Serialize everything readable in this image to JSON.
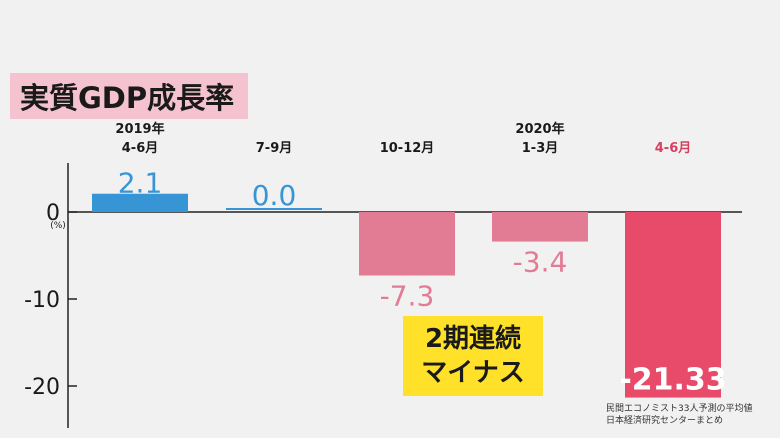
{
  "title": "実質GDP成長率",
  "callout": {
    "line1": "2期連続",
    "line2": "マイナス"
  },
  "source": {
    "line1": "民間エコノミスト33人予測の平均値",
    "line2": "日本経済研究センターまとめ"
  },
  "colors": {
    "blue": "#3795d6",
    "pink": "#e27c95",
    "red": "#e84a69",
    "red_label": "#d6405f",
    "title_bg": "#f4c3cf",
    "callout_bg": "#ffe12a"
  },
  "chart_data": {
    "type": "bar",
    "title": "実質GDP成長率",
    "ylabel": "(%)",
    "ylim": [
      -25,
      5
    ],
    "y_ticks": [
      "0",
      "-10",
      "-20"
    ],
    "y_tick_values": [
      0,
      -10,
      -20
    ],
    "categories": [
      {
        "year": "2019年",
        "period": "4-6月",
        "value": 2.1,
        "label": "2.1",
        "color": "blue"
      },
      {
        "year": "",
        "period": "7-9月",
        "value": 0.0,
        "label": "0.0",
        "color": "blue"
      },
      {
        "year": "",
        "period": "10-12月",
        "value": -7.3,
        "label": "-7.3",
        "color": "pink"
      },
      {
        "year": "2020年",
        "period": "1-3月",
        "value": -3.4,
        "label": "-3.4",
        "color": "pink"
      },
      {
        "year": "",
        "period": "4-6月",
        "value": -21.33,
        "label": "-21.33",
        "color": "red",
        "highlight": true
      }
    ],
    "grid": false,
    "legend": "none"
  }
}
